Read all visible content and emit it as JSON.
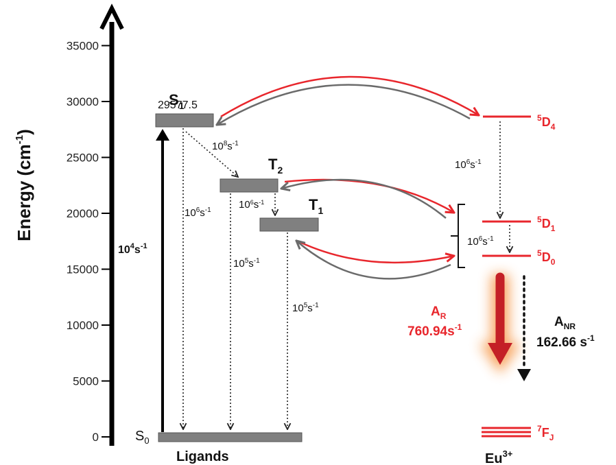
{
  "axis": {
    "title_main": "Energy (cm",
    "title_sup": "-1",
    "title_end": ")",
    "ticks": [
      "0",
      "5000",
      "10000",
      "15000",
      "20000",
      "25000",
      "30000",
      "35000"
    ]
  },
  "ligands": {
    "group_label": "Ligands",
    "s0": {
      "main": "S",
      "sub": "0"
    },
    "s1": {
      "main": "S",
      "sub": "1",
      "energy": "29577.5"
    },
    "t2": {
      "main": "T",
      "sub": "2"
    },
    "t1": {
      "main": "T",
      "sub": "1"
    }
  },
  "europium": {
    "group_label_main": "Eu",
    "group_label_sup": "3+",
    "levels": {
      "d4": {
        "sup": "5",
        "main": "D",
        "sub": "4"
      },
      "d1": {
        "sup": "5",
        "main": "D",
        "sub": "1"
      },
      "d0": {
        "sup": "5",
        "main": "D",
        "sub": "0"
      },
      "fj": {
        "sup": "7",
        "main": "F",
        "sub": "J"
      }
    }
  },
  "rates": {
    "excitation": {
      "base": "10",
      "exp": "4",
      "unit": "s",
      "unit_exp": "-1"
    },
    "s1_t2": {
      "base": "10",
      "exp": "8",
      "unit": "s",
      "unit_exp": "-1"
    },
    "s1_s0": {
      "base": "10",
      "exp": "6",
      "unit": "s",
      "unit_exp": "-1"
    },
    "t2_t1": {
      "base": "10",
      "exp": "6",
      "unit": "s",
      "unit_exp": "-1"
    },
    "t2_s0": {
      "base": "10",
      "exp": "5",
      "unit": "s",
      "unit_exp": "-1"
    },
    "t1_s0": {
      "base": "10",
      "exp": "5",
      "unit": "s",
      "unit_exp": "-1"
    },
    "d4_d1": {
      "base": "10",
      "exp": "6",
      "unit": "s",
      "unit_exp": "-1"
    },
    "d1_d0": {
      "base": "10",
      "exp": "6",
      "unit": "s",
      "unit_exp": "-1"
    }
  },
  "radiative": {
    "main": "A",
    "sub": "R",
    "value": "760.94s",
    "value_exp": "-1"
  },
  "nonradiative": {
    "main": "A",
    "sub": "NR",
    "value": "162.66 s",
    "value_exp": "-1"
  },
  "colors": {
    "red": "#e8262c",
    "grey": "#6b6b6b",
    "bar": "#808080",
    "glow": "#f7a35c"
  }
}
